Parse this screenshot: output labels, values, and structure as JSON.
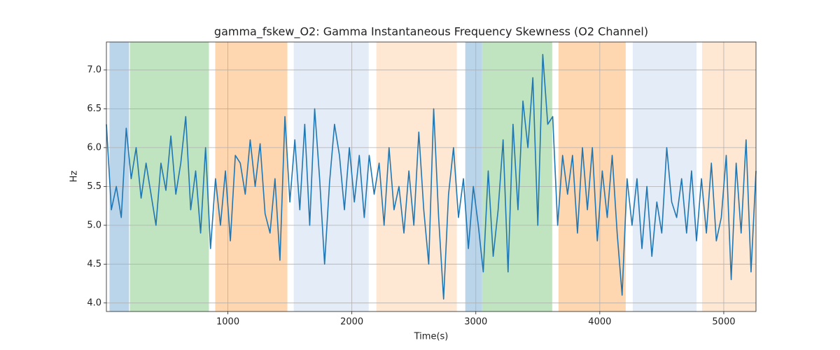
{
  "chart_data": {
    "type": "line",
    "title": "gamma_fskew_O2: Gamma Instantaneous Frequency Skewness (O2 Channel)",
    "xlabel": "Time(s)",
    "ylabel": "Hz",
    "xlim": [
      20,
      5260
    ],
    "ylim": [
      3.89,
      7.36
    ],
    "xticks": [
      1000,
      2000,
      3000,
      4000,
      5000
    ],
    "yticks": [
      {
        "value": 4.0,
        "label": "4.0"
      },
      {
        "value": 4.5,
        "label": "4.5"
      },
      {
        "value": 5.0,
        "label": "5.0"
      },
      {
        "value": 5.5,
        "label": "5.5"
      },
      {
        "value": 6.0,
        "label": "6.0"
      },
      {
        "value": 6.5,
        "label": "6.5"
      },
      {
        "value": 7.0,
        "label": "7.0"
      }
    ],
    "grid": true,
    "spans": [
      {
        "start": 45,
        "end": 203,
        "color": "#bad4ea"
      },
      {
        "start": 209,
        "end": 847,
        "color": "#c0e4bf"
      },
      {
        "start": 898,
        "end": 1480,
        "color": "#fed6b0"
      },
      {
        "start": 1531,
        "end": 2136,
        "color": "#e4ecf7"
      },
      {
        "start": 2198,
        "end": 2847,
        "color": "#fee8d4"
      },
      {
        "start": 2915,
        "end": 3051,
        "color": "#bad4ea"
      },
      {
        "start": 3051,
        "end": 3616,
        "color": "#c0e4bf"
      },
      {
        "start": 3667,
        "end": 4209,
        "color": "#fed6b0"
      },
      {
        "start": 4266,
        "end": 4780,
        "color": "#e4ecf7"
      },
      {
        "start": 4825,
        "end": 5260,
        "color": "#fee8d4"
      }
    ],
    "series": [
      {
        "color": "#1f77b4",
        "x": [
          20,
          60,
          100,
          140,
          180,
          220,
          260,
          300,
          340,
          380,
          420,
          460,
          500,
          540,
          580,
          620,
          660,
          700,
          740,
          780,
          820,
          860,
          900,
          940,
          980,
          1020,
          1060,
          1100,
          1140,
          1180,
          1220,
          1260,
          1300,
          1340,
          1380,
          1420,
          1460,
          1500,
          1540,
          1580,
          1620,
          1660,
          1700,
          1740,
          1780,
          1820,
          1860,
          1900,
          1940,
          1980,
          2020,
          2060,
          2100,
          2140,
          2180,
          2220,
          2260,
          2300,
          2340,
          2380,
          2420,
          2460,
          2500,
          2540,
          2580,
          2620,
          2660,
          2700,
          2740,
          2780,
          2820,
          2860,
          2900,
          2940,
          2980,
          3020,
          3060,
          3100,
          3140,
          3180,
          3220,
          3260,
          3300,
          3340,
          3380,
          3420,
          3460,
          3500,
          3540,
          3580,
          3620,
          3660,
          3700,
          3740,
          3780,
          3820,
          3860,
          3900,
          3940,
          3980,
          4020,
          4060,
          4100,
          4140,
          4180,
          4220,
          4260,
          4300,
          4340,
          4380,
          4420,
          4460,
          4500,
          4540,
          4580,
          4620,
          4660,
          4700,
          4740,
          4780,
          4820,
          4860,
          4900,
          4940,
          4980,
          5020,
          5060,
          5100,
          5140,
          5180,
          5220,
          5260
        ],
        "values": [
          6.3,
          5.2,
          5.5,
          5.1,
          6.25,
          5.6,
          6.0,
          5.35,
          5.8,
          5.4,
          5.0,
          5.8,
          5.45,
          6.15,
          5.4,
          5.8,
          6.4,
          5.2,
          5.7,
          4.9,
          6.0,
          4.7,
          5.6,
          5.0,
          5.7,
          4.8,
          5.9,
          5.8,
          5.4,
          6.1,
          5.5,
          6.05,
          5.15,
          4.9,
          5.6,
          4.55,
          6.4,
          5.3,
          6.1,
          5.2,
          6.3,
          5.0,
          6.5,
          5.6,
          4.5,
          5.55,
          6.3,
          5.9,
          5.2,
          6.0,
          5.3,
          5.9,
          5.1,
          5.9,
          5.4,
          5.8,
          5.0,
          6.0,
          5.2,
          5.5,
          4.9,
          5.7,
          5.0,
          6.2,
          5.2,
          4.5,
          6.5,
          5.1,
          4.05,
          5.4,
          6.0,
          5.1,
          5.6,
          4.7,
          5.5,
          5.0,
          4.4,
          5.7,
          4.6,
          5.2,
          6.1,
          4.4,
          6.3,
          5.2,
          6.6,
          6.0,
          6.9,
          5.0,
          7.2,
          6.3,
          6.4,
          5.0,
          5.9,
          5.4,
          5.9,
          4.9,
          6.0,
          5.2,
          6.0,
          4.8,
          5.7,
          5.1,
          5.9,
          4.9,
          4.1,
          5.6,
          5.0,
          5.6,
          4.7,
          5.5,
          4.6,
          5.3,
          4.9,
          6.0,
          5.3,
          5.1,
          5.6,
          4.9,
          5.7,
          4.8,
          5.6,
          4.9,
          5.8,
          4.8,
          5.1,
          5.9,
          4.3,
          5.8,
          4.9,
          6.1,
          4.4,
          5.7
        ]
      }
    ]
  }
}
